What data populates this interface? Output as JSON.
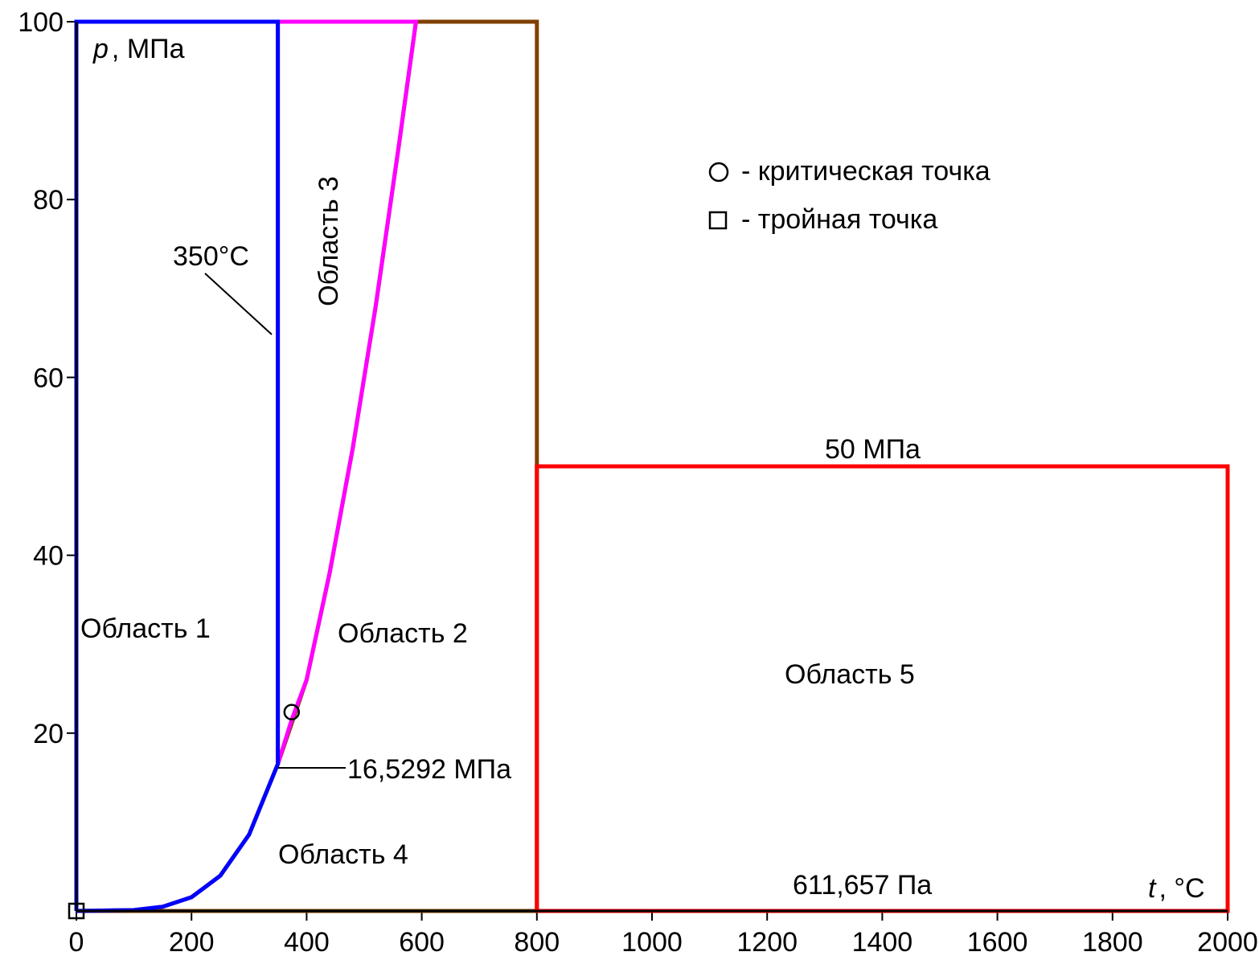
{
  "chart_data": {
    "type": "line",
    "xlabel": "t , °C",
    "ylabel": "p , МПа",
    "xlim": [
      0,
      2000
    ],
    "ylim": [
      0,
      100
    ],
    "x_ticks": [
      "0",
      "200",
      "400",
      "600",
      "800",
      "1000",
      "1200",
      "1400",
      "1600",
      "1800",
      "2000"
    ],
    "y_ticks": [
      "100",
      "80",
      "60",
      "40",
      "20"
    ],
    "grid": false,
    "series": [
      {
        "color": "#0000ff",
        "x": [
          0,
          0,
          350,
          350,
          300,
          250,
          200,
          150,
          100,
          0.01
        ],
        "y": [
          0.0006,
          100,
          100,
          16.5292,
          8.58,
          3.97,
          1.55,
          0.48,
          0.1,
          0.0006
        ]
      },
      {
        "color": "#ff00ff",
        "x": [
          350,
          350,
          590,
          560,
          520,
          480,
          440,
          400,
          374,
          350
        ],
        "y": [
          16.5292,
          100,
          100,
          86,
          68,
          52,
          38,
          26,
          21.5,
          16.5292
        ]
      },
      {
        "color": "#804000",
        "x": [
          0,
          800,
          800,
          590,
          560,
          520,
          480,
          440,
          400,
          350,
          300,
          250,
          200,
          150,
          100,
          0
        ],
        "y": [
          0,
          0,
          100,
          100,
          86,
          68,
          52,
          38,
          26,
          16.5292,
          8.58,
          3.97,
          1.55,
          0.48,
          0.1,
          0
        ]
      },
      {
        "color": "#ff0000",
        "x": [
          800,
          2000,
          2000,
          800,
          800
        ],
        "y": [
          0,
          0,
          50,
          50,
          0
        ]
      }
    ],
    "critical_point": {
      "x": 374,
      "y": 22
    },
    "triple_point": {
      "x": 0.01,
      "y": 0.0006
    },
    "annotations": {
      "region1": "Область 1",
      "region2": "Область 2",
      "region3": "Область 3",
      "region4": "Область 4",
      "region5": "Область   5",
      "t350": "350°C",
      "p16": "16,5292 МПа",
      "p50": "50 МПа",
      "p611": "611,657 Па"
    },
    "legend": {
      "critical": "- критическая точка",
      "triple": "- тройная точка",
      "position": "top-right"
    },
    "axis_label_p": "p",
    "axis_unit_p": ", МПа",
    "axis_label_t": "t",
    "axis_unit_t": ", °C"
  }
}
